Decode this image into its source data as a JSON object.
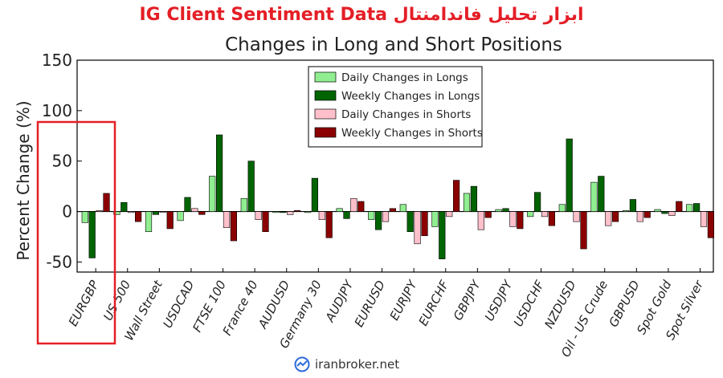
{
  "header": {
    "title": "IG Client Sentiment Data ابزار تحلیل فاندامنتال"
  },
  "watermark": {
    "text": "iranbroker.net",
    "icon": "iranbroker-logo-icon"
  },
  "colors": {
    "daily_longs": "#90ee90",
    "weekly_longs": "#006400",
    "daily_shorts": "#ffc0cb",
    "weekly_shorts": "#8b0000",
    "highlight": "#e41e26"
  },
  "chart_data": {
    "type": "bar",
    "title": "Changes in Long and Short Positions",
    "ylabel": "Percent Change (%)",
    "xlabel": "",
    "ylim": [
      -60,
      150
    ],
    "yticks": [
      -50,
      0,
      50,
      100,
      150
    ],
    "grid": false,
    "legend_position": "top-center",
    "highlighted_category": "EURGBP",
    "categories": [
      "EURGBP",
      "US 500",
      "Wall Street",
      "USDCAD",
      "FTSE 100",
      "France 40",
      "AUDUSD",
      "Germany 30",
      "AUDJPY",
      "EURUSD",
      "EURJPY",
      "EURCHF",
      "GBPJPY",
      "USDJPY",
      "USDCHF",
      "NZDUSD",
      "Oil - US Crude",
      "GBPUSD",
      "Spot Gold",
      "Spot Silver"
    ],
    "series": [
      {
        "name": "Daily Changes in Longs",
        "values": [
          -11,
          -3,
          -20,
          -9,
          35,
          13,
          -1,
          -1,
          3,
          -8,
          7,
          -15,
          18,
          2,
          -5,
          7,
          29,
          1,
          2,
          7
        ]
      },
      {
        "name": "Weekly Changes in Longs",
        "values": [
          -46,
          9,
          -3,
          14,
          76,
          50,
          -1,
          33,
          -7,
          -18,
          -20,
          -47,
          25,
          3,
          19,
          72,
          35,
          12,
          -2,
          8
        ]
      },
      {
        "name": "Daily Changes in Shorts",
        "values": [
          1,
          -1,
          0,
          3,
          -16,
          -8,
          -3,
          -8,
          13,
          -10,
          -32,
          -5,
          -18,
          -15,
          -5,
          -10,
          -14,
          -10,
          -4,
          -15
        ]
      },
      {
        "name": "Weekly Changes in Shorts",
        "values": [
          18,
          -10,
          -17,
          -3,
          -29,
          -20,
          1,
          -26,
          10,
          3,
          -24,
          31,
          -6,
          -17,
          -14,
          -37,
          -10,
          -6,
          10,
          -26
        ]
      }
    ]
  }
}
